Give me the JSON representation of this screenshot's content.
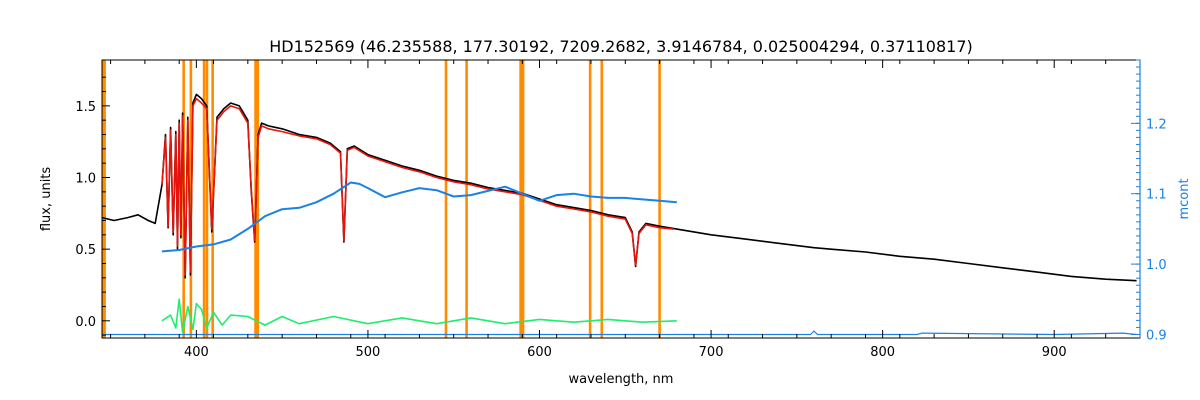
{
  "chart_data": {
    "type": "line",
    "title": "HD152569    (46.235588, 177.30192, 7209.2682, 3.9146784, 0.025004294, 0.37110817)",
    "xlabel": "wavelength, nm",
    "ylabel": "flux, units",
    "y2label": "mcont",
    "xlim": [
      345,
      950
    ],
    "ylim": [
      -0.12,
      1.82
    ],
    "y2lim": [
      0.895,
      1.29
    ],
    "xticks": [
      400,
      500,
      600,
      700,
      800,
      900
    ],
    "yticks": [
      0.0,
      0.5,
      1.0,
      1.5
    ],
    "y2ticks": [
      0.9,
      1.0,
      1.1,
      1.2
    ],
    "xtick_labels": [
      "400",
      "500",
      "600",
      "700",
      "800",
      "900"
    ],
    "ytick_labels": [
      "0.0",
      "0.5",
      "1.0",
      "1.5"
    ],
    "y2tick_labels": [
      "0.9",
      "1.0",
      "1.1",
      "1.2"
    ],
    "grid": false,
    "colors": {
      "observed": "#000000",
      "model": "#e8140c",
      "continuum": "#1a82e6",
      "residual": "#1eee6e",
      "masks": "#ff8c00",
      "axis2": "#1a82e6"
    },
    "mask_lines": [
      345.5,
      346.5,
      392.6,
      396.8,
      404.5,
      406.2,
      409.5,
      434.5,
      435.8,
      545.5,
      557.5,
      589.0,
      589.8,
      590.4,
      629.5,
      636.3,
      670.0
    ],
    "series": [
      {
        "role": "observed",
        "axis": "left",
        "x": [
          345,
          352,
          360,
          366,
          372,
          376,
          380,
          382,
          383.5,
          385,
          386.5,
          388,
          389,
          390,
          391,
          392,
          393.5,
          395,
          396.5,
          398,
          400,
          403,
          406,
          409,
          412,
          416,
          420,
          425,
          430,
          432,
          434,
          436,
          438,
          442,
          450,
          460,
          470,
          478,
          484,
          486,
          488,
          492,
          500,
          510,
          520,
          530,
          540,
          550,
          560,
          570,
          580,
          590,
          600,
          610,
          620,
          630,
          640,
          650,
          654,
          656,
          658,
          662,
          670,
          680,
          700,
          720,
          740,
          760,
          770,
          790,
          810,
          830,
          850,
          870,
          890,
          910,
          930,
          948
        ],
        "y": [
          0.72,
          0.7,
          0.72,
          0.74,
          0.7,
          0.68,
          0.95,
          1.3,
          0.65,
          1.35,
          0.6,
          1.32,
          0.5,
          1.4,
          0.58,
          1.45,
          0.3,
          1.42,
          0.32,
          1.52,
          1.58,
          1.55,
          1.5,
          0.62,
          1.42,
          1.48,
          1.52,
          1.5,
          1.4,
          0.9,
          0.55,
          1.3,
          1.38,
          1.36,
          1.34,
          1.3,
          1.28,
          1.24,
          1.18,
          0.55,
          1.2,
          1.22,
          1.16,
          1.12,
          1.08,
          1.05,
          1.01,
          0.98,
          0.96,
          0.93,
          0.91,
          0.89,
          0.85,
          0.81,
          0.79,
          0.77,
          0.74,
          0.72,
          0.62,
          0.38,
          0.62,
          0.68,
          0.66,
          0.64,
          0.6,
          0.57,
          0.54,
          0.51,
          0.5,
          0.48,
          0.45,
          0.43,
          0.4,
          0.37,
          0.34,
          0.31,
          0.29,
          0.28
        ]
      },
      {
        "role": "model",
        "axis": "left",
        "x": [
          380,
          382,
          383.5,
          385,
          386.5,
          388,
          389,
          390,
          391,
          392,
          393.5,
          395,
          396.5,
          398,
          400,
          403,
          406,
          409,
          412,
          416,
          420,
          425,
          430,
          432,
          434,
          436,
          438,
          442,
          450,
          460,
          470,
          478,
          484,
          486,
          488,
          492,
          500,
          510,
          520,
          530,
          540,
          550,
          560,
          570,
          580,
          590,
          600,
          610,
          620,
          630,
          640,
          650,
          654,
          656,
          658,
          662,
          670,
          678
        ],
        "y": [
          0.95,
          1.28,
          0.66,
          1.33,
          0.62,
          1.3,
          0.52,
          1.38,
          0.6,
          1.43,
          0.32,
          1.4,
          0.34,
          1.5,
          1.55,
          1.52,
          1.48,
          0.64,
          1.4,
          1.46,
          1.5,
          1.48,
          1.38,
          0.92,
          0.56,
          1.28,
          1.36,
          1.34,
          1.32,
          1.29,
          1.27,
          1.23,
          1.17,
          0.56,
          1.19,
          1.21,
          1.15,
          1.11,
          1.07,
          1.04,
          1.0,
          0.97,
          0.95,
          0.92,
          0.9,
          0.88,
          0.84,
          0.8,
          0.78,
          0.76,
          0.73,
          0.71,
          0.61,
          0.39,
          0.61,
          0.67,
          0.65,
          0.64
        ]
      },
      {
        "role": "continuum",
        "axis": "right",
        "x": [
          380,
          390,
          400,
          410,
          420,
          430,
          440,
          450,
          460,
          470,
          480,
          490,
          495,
          500,
          510,
          520,
          530,
          540,
          550,
          560,
          570,
          580,
          590,
          600,
          610,
          620,
          630,
          640,
          650,
          660,
          670,
          680
        ],
        "y": [
          1.018,
          1.02,
          1.025,
          1.028,
          1.035,
          1.05,
          1.068,
          1.078,
          1.08,
          1.088,
          1.1,
          1.116,
          1.114,
          1.108,
          1.095,
          1.102,
          1.108,
          1.105,
          1.096,
          1.098,
          1.104,
          1.11,
          1.1,
          1.09,
          1.098,
          1.1,
          1.096,
          1.094,
          1.094,
          1.092,
          1.09,
          1.088
        ]
      },
      {
        "role": "residual",
        "axis": "left",
        "x": [
          380,
          385,
          388,
          390,
          392,
          395,
          398,
          400,
          403,
          406,
          410,
          415,
          420,
          430,
          440,
          450,
          460,
          480,
          500,
          520,
          540,
          560,
          580,
          600,
          620,
          640,
          660,
          680
        ],
        "y": [
          0.0,
          0.04,
          -0.05,
          0.15,
          -0.08,
          0.1,
          -0.06,
          0.12,
          0.08,
          -0.05,
          0.06,
          -0.03,
          0.04,
          0.03,
          -0.03,
          0.03,
          -0.02,
          0.03,
          -0.02,
          0.02,
          -0.02,
          0.02,
          -0.02,
          0.01,
          -0.01,
          0.01,
          -0.01,
          0.0
        ]
      },
      {
        "role": "weights",
        "axis": "right",
        "x": [
          345,
          380,
          500,
          600,
          700,
          758,
          760,
          762,
          800,
          820,
          823,
          900,
          940,
          948
        ],
        "y": [
          0.9,
          0.9,
          0.9,
          0.9,
          0.9,
          0.9,
          0.905,
          0.9,
          0.9,
          0.9,
          0.902,
          0.9,
          0.902,
          0.9
        ]
      }
    ]
  }
}
